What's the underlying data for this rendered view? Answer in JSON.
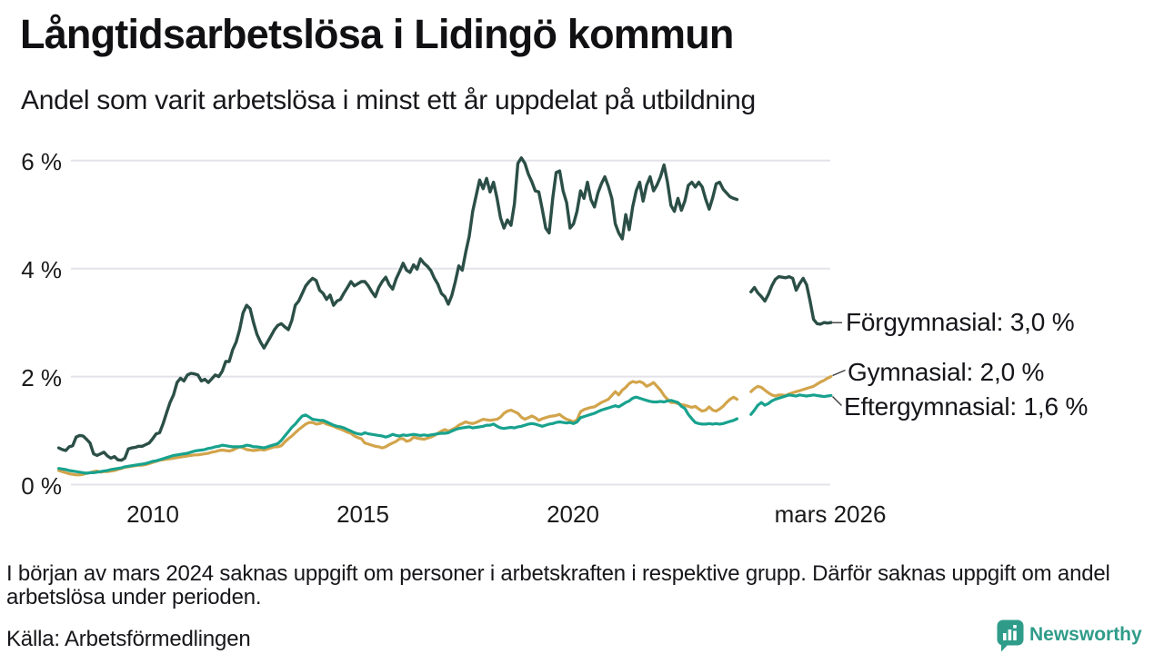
{
  "header": {
    "title": "Långtidsarbetslösa i Lidingö kommun",
    "subtitle": "Andel som varit arbetslösa i minst ett år uppdelat på utbildning"
  },
  "chart_data": {
    "type": "line",
    "title": "Långtidsarbetslösa i Lidingö kommun",
    "subtitle": "Andel som varit arbetslösa i minst ett år uppdelat på utbildning",
    "unit": "percent of labour force",
    "frequency": "monthly",
    "start": "2007-09",
    "end": "2026-03",
    "missing_period": [
      "2024-01",
      "2024-02",
      "2024-03"
    ],
    "ylim": [
      0,
      6.3
    ],
    "grid": "horizontal",
    "y_tick_values": [
      6,
      4,
      2,
      0
    ],
    "y_ticks": [
      "6 %",
      "4 %",
      "2 %",
      "0 %"
    ],
    "x_tick_years": [
      2010,
      2015,
      2020,
      2026.21
    ],
    "x_ticks": [
      "2010",
      "2015",
      "2020",
      "mars 2026"
    ],
    "legend_position": "right-of-line-end",
    "colors": {
      "forgymnasial": "#2b4f46",
      "gymnasial": "#d2a44b",
      "eftergymnasial": "#18a28e",
      "gridline": "#e4e3e9",
      "connector": "#3c3c40"
    },
    "series": [
      {
        "name": "Gymnasial",
        "label": "Gymnasial: 2,0 %",
        "latest_value": "2,0 %",
        "color": "#d2a44b",
        "values": [
          0.26,
          0.24,
          0.22,
          0.2,
          0.19,
          0.18,
          0.18,
          0.19,
          0.21,
          0.22,
          0.24,
          0.25,
          0.23,
          0.24,
          0.24,
          0.25,
          0.26,
          0.28,
          0.3,
          0.32,
          0.33,
          0.34,
          0.35,
          0.36,
          0.36,
          0.37,
          0.39,
          0.41,
          0.43,
          0.45,
          0.46,
          0.47,
          0.48,
          0.49,
          0.5,
          0.51,
          0.52,
          0.53,
          0.54,
          0.55,
          0.55,
          0.56,
          0.57,
          0.58,
          0.6,
          0.61,
          0.63,
          0.64,
          0.63,
          0.62,
          0.64,
          0.67,
          0.7,
          0.68,
          0.65,
          0.64,
          0.63,
          0.64,
          0.65,
          0.64,
          0.66,
          0.68,
          0.7,
          0.7,
          0.72,
          0.79,
          0.85,
          0.9,
          0.96,
          1.02,
          1.07,
          1.12,
          1.15,
          1.15,
          1.12,
          1.13,
          1.15,
          1.12,
          1.1,
          1.08,
          1.05,
          1.03,
          1.0,
          0.97,
          0.95,
          0.9,
          0.87,
          0.85,
          0.77,
          0.75,
          0.73,
          0.71,
          0.7,
          0.68,
          0.7,
          0.74,
          0.77,
          0.8,
          0.85,
          0.85,
          0.8,
          0.82,
          0.88,
          0.86,
          0.85,
          0.84,
          0.86,
          0.88,
          0.91,
          0.95,
          0.99,
          1.02,
          0.99,
          1.02,
          1.05,
          1.1,
          1.13,
          1.16,
          1.14,
          1.13,
          1.15,
          1.18,
          1.21,
          1.2,
          1.19,
          1.2,
          1.21,
          1.25,
          1.32,
          1.36,
          1.38,
          1.35,
          1.32,
          1.25,
          1.21,
          1.24,
          1.27,
          1.24,
          1.19,
          1.22,
          1.24,
          1.26,
          1.27,
          1.28,
          1.3,
          1.25,
          1.21,
          1.19,
          1.16,
          1.2,
          1.35,
          1.39,
          1.41,
          1.43,
          1.44,
          1.48,
          1.52,
          1.55,
          1.58,
          1.65,
          1.72,
          1.66,
          1.75,
          1.8,
          1.87,
          1.91,
          1.89,
          1.91,
          1.88,
          1.82,
          1.85,
          1.89,
          1.82,
          1.75,
          1.65,
          1.58,
          1.52,
          1.52,
          1.5,
          1.48,
          1.47,
          1.45,
          1.43,
          1.45,
          1.4,
          1.36,
          1.38,
          1.44,
          1.38,
          1.36,
          1.4,
          1.45,
          1.52,
          1.58,
          1.62,
          1.58,
          null,
          null,
          null,
          1.72,
          1.78,
          1.82,
          1.8,
          1.75,
          1.7,
          1.66,
          1.64,
          1.66,
          1.66,
          1.65,
          1.68,
          1.7,
          1.72,
          1.74,
          1.76,
          1.78,
          1.8,
          1.82,
          1.86,
          1.9,
          1.93,
          1.97,
          2.0
        ]
      },
      {
        "name": "Eftergymnasial",
        "label": "Eftergymnasial: 1,6 %",
        "latest_value": "1,6 %",
        "color": "#18a28e",
        "values": [
          0.3,
          0.29,
          0.28,
          0.26,
          0.25,
          0.24,
          0.23,
          0.22,
          0.21,
          0.22,
          0.22,
          0.23,
          0.24,
          0.25,
          0.26,
          0.28,
          0.29,
          0.3,
          0.31,
          0.33,
          0.34,
          0.35,
          0.36,
          0.37,
          0.38,
          0.39,
          0.41,
          0.43,
          0.44,
          0.46,
          0.48,
          0.5,
          0.52,
          0.54,
          0.55,
          0.56,
          0.57,
          0.58,
          0.6,
          0.62,
          0.63,
          0.64,
          0.65,
          0.67,
          0.68,
          0.7,
          0.71,
          0.73,
          0.72,
          0.71,
          0.7,
          0.7,
          0.7,
          0.71,
          0.73,
          0.72,
          0.7,
          0.7,
          0.69,
          0.68,
          0.7,
          0.72,
          0.74,
          0.76,
          0.82,
          0.9,
          0.98,
          1.06,
          1.12,
          1.2,
          1.27,
          1.29,
          1.25,
          1.21,
          1.2,
          1.19,
          1.19,
          1.16,
          1.13,
          1.1,
          1.08,
          1.07,
          1.05,
          1.02,
          0.99,
          0.96,
          0.94,
          0.93,
          0.96,
          0.94,
          0.93,
          0.92,
          0.91,
          0.9,
          0.88,
          0.9,
          0.93,
          0.91,
          0.9,
          0.92,
          0.91,
          0.92,
          0.93,
          0.92,
          0.91,
          0.92,
          0.91,
          0.92,
          0.93,
          0.94,
          0.95,
          0.95,
          0.96,
          0.99,
          1.02,
          1.04,
          1.05,
          1.06,
          1.07,
          1.05,
          1.06,
          1.07,
          1.08,
          1.1,
          1.1,
          1.12,
          1.08,
          1.05,
          1.04,
          1.05,
          1.06,
          1.05,
          1.07,
          1.08,
          1.1,
          1.12,
          1.13,
          1.12,
          1.1,
          1.08,
          1.1,
          1.12,
          1.13,
          1.15,
          1.16,
          1.15,
          1.14,
          1.15,
          1.13,
          1.16,
          1.24,
          1.26,
          1.28,
          1.3,
          1.32,
          1.35,
          1.38,
          1.4,
          1.42,
          1.44,
          1.46,
          1.44,
          1.48,
          1.52,
          1.55,
          1.6,
          1.62,
          1.6,
          1.58,
          1.56,
          1.54,
          1.53,
          1.53,
          1.54,
          1.53,
          1.55,
          1.56,
          1.54,
          1.52,
          1.45,
          1.41,
          1.3,
          1.22,
          1.15,
          1.13,
          1.12,
          1.12,
          1.13,
          1.12,
          1.13,
          1.12,
          1.13,
          1.15,
          1.17,
          1.19,
          1.22,
          null,
          null,
          null,
          1.3,
          1.38,
          1.47,
          1.52,
          1.47,
          1.5,
          1.55,
          1.58,
          1.6,
          1.62,
          1.64,
          1.66,
          1.65,
          1.64,
          1.66,
          1.65,
          1.64,
          1.65,
          1.66,
          1.65,
          1.64,
          1.63,
          1.64,
          1.65
        ]
      },
      {
        "name": "Förgymnasial",
        "label": "Förgymnasial: 3,0 %",
        "latest_value": "3,0 %",
        "color": "#2b4f46",
        "values": [
          0.68,
          0.65,
          0.63,
          0.7,
          0.72,
          0.88,
          0.91,
          0.9,
          0.84,
          0.77,
          0.57,
          0.54,
          0.57,
          0.6,
          0.53,
          0.49,
          0.52,
          0.46,
          0.45,
          0.49,
          0.66,
          0.68,
          0.69,
          0.71,
          0.71,
          0.74,
          0.77,
          0.85,
          0.94,
          0.96,
          1.13,
          1.33,
          1.52,
          1.66,
          1.89,
          1.97,
          1.92,
          2.03,
          2.06,
          2.05,
          2.03,
          1.92,
          1.95,
          1.89,
          1.96,
          2.03,
          2.0,
          2.1,
          2.28,
          2.28,
          2.5,
          2.64,
          2.87,
          3.18,
          3.32,
          3.26,
          3.0,
          2.78,
          2.64,
          2.53,
          2.64,
          2.75,
          2.87,
          2.95,
          2.98,
          2.92,
          2.87,
          3.04,
          3.32,
          3.4,
          3.54,
          3.68,
          3.76,
          3.82,
          3.78,
          3.6,
          3.54,
          3.43,
          3.51,
          3.32,
          3.4,
          3.43,
          3.55,
          3.65,
          3.76,
          3.68,
          3.72,
          3.76,
          3.76,
          3.68,
          3.57,
          3.48,
          3.65,
          3.76,
          3.84,
          3.7,
          3.62,
          3.81,
          3.95,
          4.1,
          3.97,
          3.93,
          4.07,
          3.99,
          4.18,
          4.1,
          4.04,
          3.96,
          3.82,
          3.71,
          3.54,
          3.48,
          3.34,
          3.5,
          3.76,
          4.05,
          3.97,
          4.3,
          4.6,
          5.06,
          5.35,
          5.64,
          5.48,
          5.67,
          5.42,
          5.6,
          5.3,
          4.94,
          4.75,
          4.9,
          4.8,
          5.2,
          5.95,
          6.05,
          5.95,
          5.75,
          5.61,
          5.44,
          5.42,
          5.1,
          4.75,
          4.66,
          5.3,
          5.78,
          5.81,
          5.44,
          5.22,
          4.75,
          4.83,
          5.06,
          5.44,
          5.3,
          5.6,
          5.28,
          5.14,
          5.4,
          5.57,
          5.7,
          5.52,
          5.3,
          4.83,
          4.66,
          4.55,
          5.0,
          4.72,
          5.14,
          5.44,
          5.6,
          5.25,
          5.54,
          5.7,
          5.44,
          5.55,
          5.7,
          5.92,
          5.6,
          5.17,
          5.06,
          5.3,
          5.08,
          5.25,
          5.54,
          5.6,
          5.51,
          5.6,
          5.51,
          5.28,
          5.1,
          5.31,
          5.57,
          5.6,
          5.47,
          5.4,
          5.33,
          5.3,
          5.28,
          null,
          null,
          null,
          3.57,
          3.65,
          3.55,
          3.48,
          3.4,
          3.52,
          3.68,
          3.8,
          3.85,
          3.84,
          3.83,
          3.85,
          3.82,
          3.6,
          3.72,
          3.82,
          3.7,
          3.4,
          3.06,
          2.98,
          2.97,
          3.0,
          2.99,
          3.0
        ]
      }
    ]
  },
  "footer": {
    "note": "I början av mars 2024 saknas uppgift om personer i arbetskraften i respektive grupp. Därför saknas uppgift om andel arbetslösa under perioden.",
    "source": "Källa: Arbetsförmedlingen",
    "brand": "Newsworthy",
    "brand_color": "#2f9c8a"
  }
}
